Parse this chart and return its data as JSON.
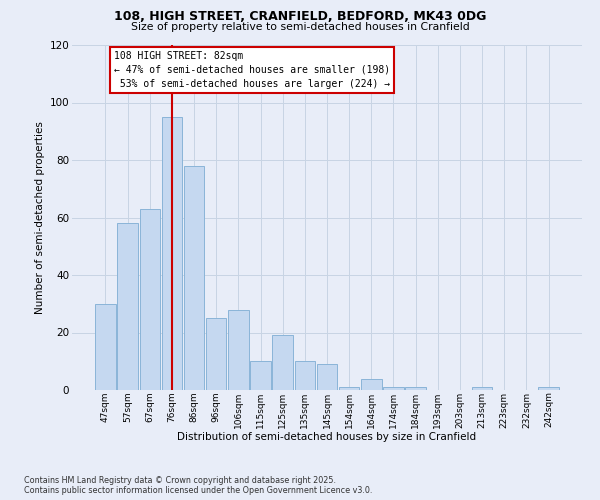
{
  "title1": "108, HIGH STREET, CRANFIELD, BEDFORD, MK43 0DG",
  "title2": "Size of property relative to semi-detached houses in Cranfield",
  "xlabel": "Distribution of semi-detached houses by size in Cranfield",
  "ylabel": "Number of semi-detached properties",
  "categories": [
    "47sqm",
    "57sqm",
    "67sqm",
    "76sqm",
    "86sqm",
    "96sqm",
    "106sqm",
    "115sqm",
    "125sqm",
    "135sqm",
    "145sqm",
    "154sqm",
    "164sqm",
    "174sqm",
    "184sqm",
    "193sqm",
    "203sqm",
    "213sqm",
    "223sqm",
    "232sqm",
    "242sqm"
  ],
  "values": [
    30,
    58,
    63,
    95,
    78,
    25,
    28,
    10,
    19,
    10,
    9,
    1,
    4,
    1,
    1,
    0,
    0,
    1,
    0,
    0,
    1
  ],
  "bar_color": "#c5d8f0",
  "bar_edge_color": "#8ab4d8",
  "marker_line_color": "#cc0000",
  "annotation_face": "#ffffff",
  "annotation_edge": "#cc0000",
  "marker_label": "108 HIGH STREET: 82sqm",
  "pct_smaller": "47% of semi-detached houses are smaller (198)",
  "pct_larger": "53% of semi-detached houses are larger (224)",
  "ylim_max": 120,
  "yticks": [
    0,
    20,
    40,
    60,
    80,
    100,
    120
  ],
  "grid_color": "#c8d4e4",
  "bg_color": "#e8edf8",
  "footer1": "Contains HM Land Registry data © Crown copyright and database right 2025.",
  "footer2": "Contains public sector information licensed under the Open Government Licence v3.0."
}
